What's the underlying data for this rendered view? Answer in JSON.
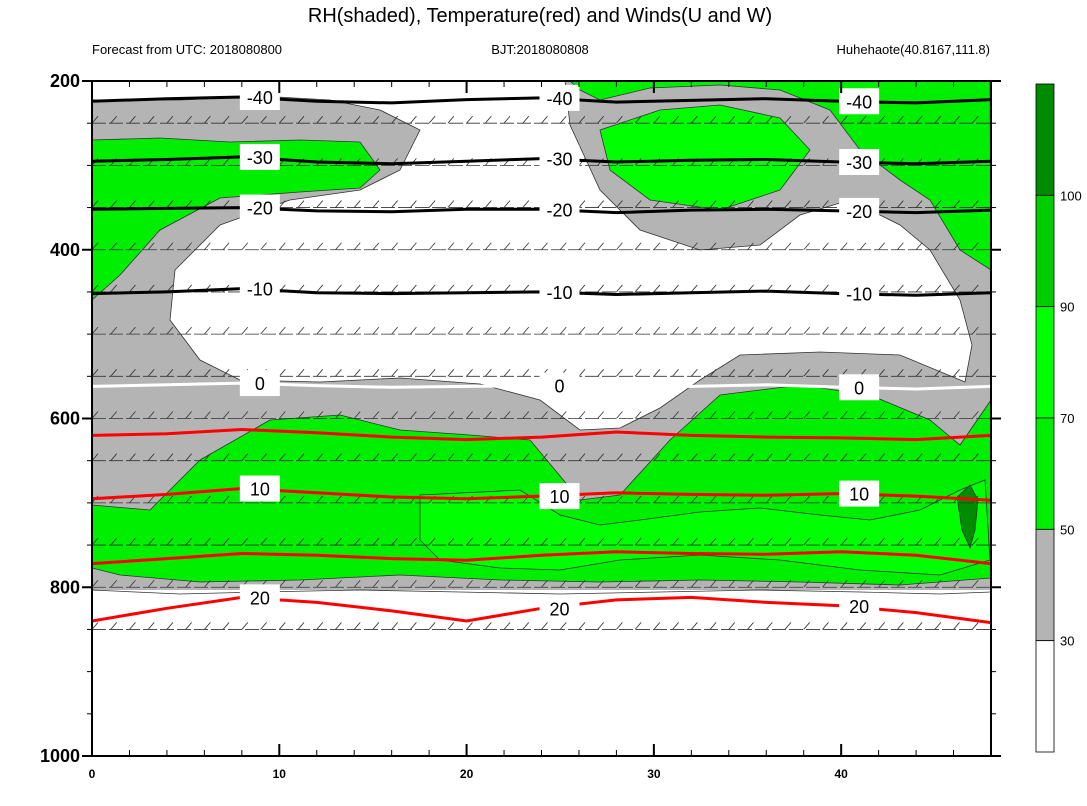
{
  "chart_data": {
    "type": "heatmap",
    "title": "RH(shaded), Temperature(red) and Winds(U and W)",
    "info_left": "Forecast from UTC: 2018080800",
    "info_center": "BJT:2018080808",
    "info_right": "Huhehaote(40.8167,111.8)",
    "x_ticks": [
      0,
      10,
      20,
      30,
      40
    ],
    "xlim": [
      0,
      48
    ],
    "y_ticks": [
      200,
      400,
      600,
      800,
      1000
    ],
    "ylim": [
      200,
      1000
    ],
    "colorbar": {
      "ticks": [
        30,
        50,
        70,
        90,
        100
      ],
      "colors": [
        "#ffffff",
        "#b4b4b4",
        "#00ee00",
        "#00ff00",
        "#00cd00",
        "#008b00"
      ]
    },
    "temperature_isotherms": [
      {
        "label": "-40",
        "color": "#000000",
        "p": [
          224,
          221,
          219,
          224,
          226,
          222,
          220,
          225,
          223,
          221,
          224,
          226,
          222
        ]
      },
      {
        "label": "-30",
        "color": "#000000",
        "p": [
          295,
          293,
          290,
          296,
          298,
          295,
          292,
          296,
          294,
          293,
          296,
          298,
          295
        ]
      },
      {
        "label": "-20",
        "color": "#000000",
        "p": [
          352,
          351,
          350,
          354,
          355,
          352,
          352,
          356,
          353,
          352,
          354,
          356,
          353
        ]
      },
      {
        "label": "-10",
        "color": "#000000",
        "p": [
          452,
          450,
          446,
          451,
          452,
          451,
          450,
          453,
          451,
          449,
          452,
          454,
          451
        ]
      },
      {
        "label": "0",
        "color": "#ffffff",
        "p": [
          562,
          560,
          558,
          561,
          563,
          562,
          561,
          562,
          562,
          560,
          563,
          565,
          562
        ]
      },
      {
        "label": "",
        "color": "#ff0000",
        "p": [
          620,
          618,
          613,
          617,
          622,
          625,
          622,
          616,
          620,
          622,
          623,
          625,
          620
        ]
      },
      {
        "label": "10",
        "color": "#ff0000",
        "p": [
          695,
          690,
          683,
          688,
          693,
          695,
          692,
          688,
          690,
          691,
          689,
          692,
          697
        ]
      },
      {
        "label": "",
        "color": "#ff0000",
        "p": [
          772,
          766,
          760,
          762,
          766,
          768,
          762,
          758,
          760,
          761,
          758,
          762,
          772
        ]
      },
      {
        "label": "20",
        "color": "#ff0000",
        "p": [
          840,
          825,
          812,
          818,
          828,
          840,
          825,
          815,
          812,
          818,
          822,
          830,
          842
        ]
      }
    ],
    "isotherm_x": [
      0,
      4,
      8,
      12,
      16,
      20,
      24,
      28,
      32,
      36,
      40,
      44,
      48
    ],
    "wind_levels": [
      250,
      300,
      350,
      400,
      450,
      500,
      550,
      600,
      650,
      700,
      750,
      800,
      850
    ]
  }
}
